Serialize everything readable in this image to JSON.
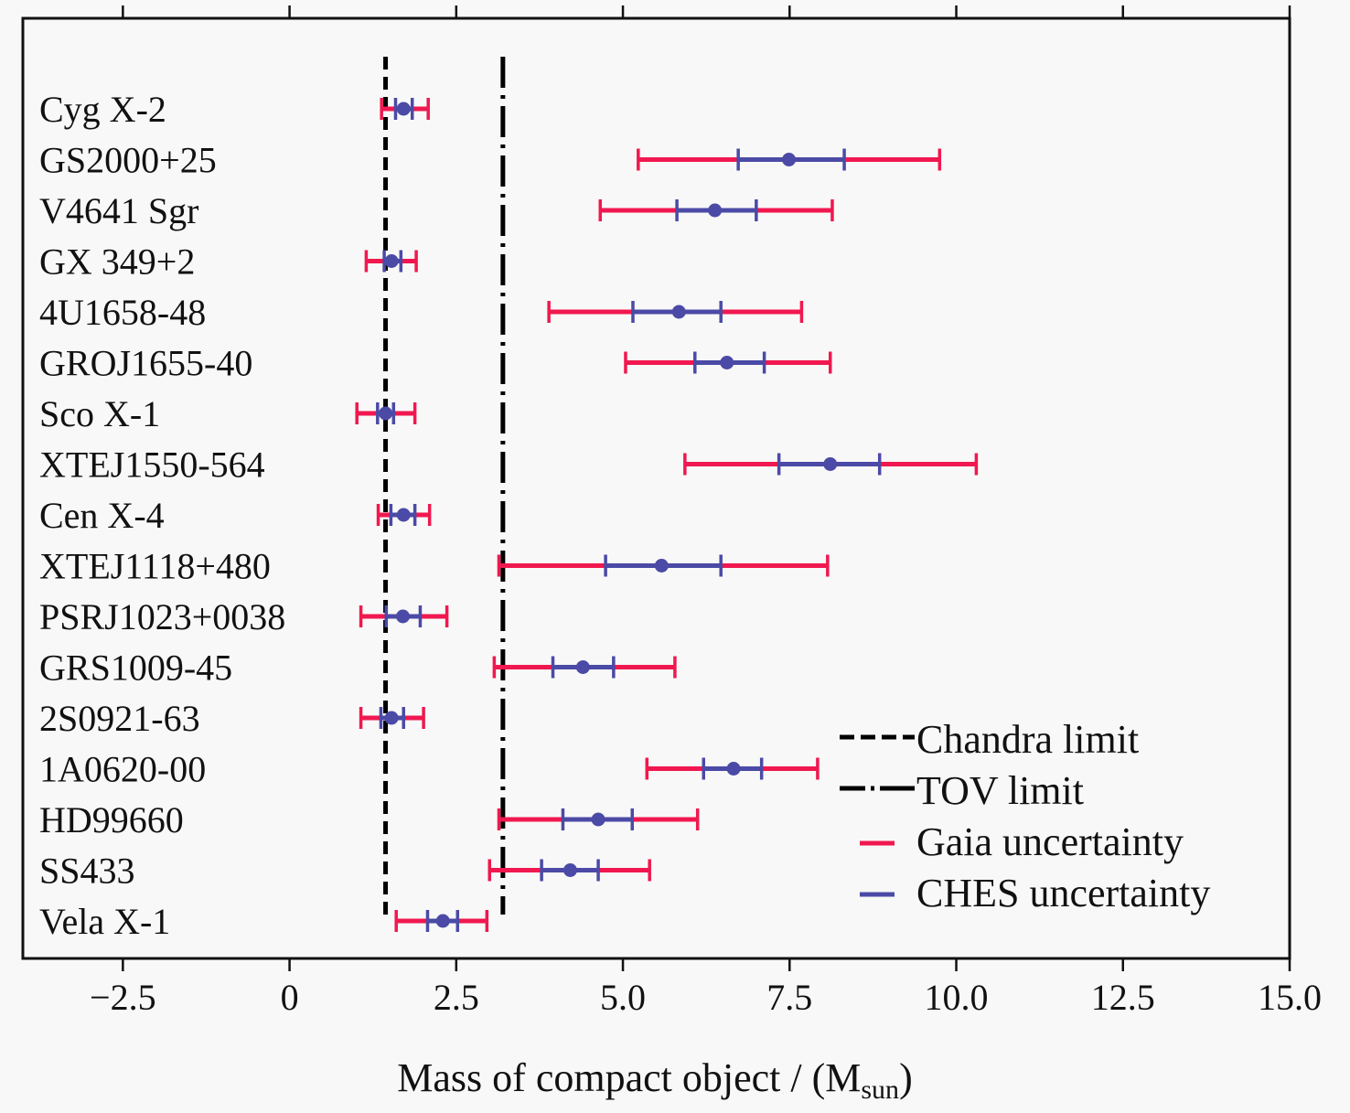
{
  "chart_data": {
    "type": "errorbar",
    "title": "",
    "xlabel": "Mass of compact object / (M",
    "xlabel_sub": "sun",
    "xlabel_close": ")",
    "ylabel": "",
    "xlim": [
      -4.0,
      15.0
    ],
    "xticks": [
      -2.5,
      0,
      2.5,
      5.0,
      7.5,
      10.0,
      12.5,
      15.0
    ],
    "xtick_labels": [
      "−2.5",
      "0",
      "2.5",
      "5.0",
      "7.5",
      "10.0",
      "12.5",
      "15.0"
    ],
    "grid": false,
    "legend_position": "bottom-right",
    "colors": {
      "gaia": "#f0184f",
      "ches": "#4b4aa6",
      "point": "#4b4aa6",
      "limit_lines": "#000000"
    },
    "reference_lines": [
      {
        "name": "Chandra limit",
        "x": 1.44,
        "style": "dashed"
      },
      {
        "name": "TOV limit",
        "x": 3.2,
        "style": "dashdot"
      }
    ],
    "legend": [
      {
        "label": "Chandra limit",
        "style": "dashed"
      },
      {
        "label": "TOV limit",
        "style": "dashdot"
      },
      {
        "label": "Gaia uncertainty",
        "style": "gaia"
      },
      {
        "label": "CHES uncertainty",
        "style": "ches"
      }
    ],
    "series": [
      {
        "name": "Cyg X-2",
        "mass": 1.71,
        "gaia": [
          1.38,
          2.08
        ],
        "ches": [
          1.59,
          1.84
        ]
      },
      {
        "name": "GS2000+25",
        "mass": 7.49,
        "gaia": [
          5.23,
          9.75
        ],
        "ches": [
          6.73,
          8.32
        ]
      },
      {
        "name": "V4641 Sgr",
        "mass": 6.38,
        "gaia": [
          4.66,
          8.14
        ],
        "ches": [
          5.81,
          7.0
        ]
      },
      {
        "name": "GX 349+2",
        "mass": 1.53,
        "gaia": [
          1.15,
          1.9
        ],
        "ches": [
          1.42,
          1.67
        ]
      },
      {
        "name": "4U1658-48",
        "mass": 5.84,
        "gaia": [
          3.89,
          7.68
        ],
        "ches": [
          5.15,
          6.47
        ]
      },
      {
        "name": "GROJ1655-40",
        "mass": 6.56,
        "gaia": [
          5.04,
          8.11
        ],
        "ches": [
          6.08,
          7.12
        ]
      },
      {
        "name": "Sco X-1",
        "mass": 1.44,
        "gaia": [
          1.01,
          1.88
        ],
        "ches": [
          1.32,
          1.56
        ]
      },
      {
        "name": "XTEJ1550-564",
        "mass": 8.11,
        "gaia": [
          5.93,
          10.3
        ],
        "ches": [
          7.34,
          8.85
        ]
      },
      {
        "name": "Cen X-4",
        "mass": 1.71,
        "gaia": [
          1.33,
          2.1
        ],
        "ches": [
          1.52,
          1.88
        ]
      },
      {
        "name": "XTEJ1118+480",
        "mass": 5.58,
        "gaia": [
          3.14,
          8.07
        ],
        "ches": [
          4.74,
          6.47
        ]
      },
      {
        "name": "PSRJ1023+0038",
        "mass": 1.7,
        "gaia": [
          1.07,
          2.36
        ],
        "ches": [
          1.45,
          1.96
        ]
      },
      {
        "name": "GRS1009-45",
        "mass": 4.4,
        "gaia": [
          3.07,
          5.78
        ],
        "ches": [
          3.95,
          4.86
        ]
      },
      {
        "name": "2S0921-63",
        "mass": 1.53,
        "gaia": [
          1.07,
          2.01
        ],
        "ches": [
          1.37,
          1.71
        ]
      },
      {
        "name": "1A0620-00",
        "mass": 6.66,
        "gaia": [
          5.36,
          7.92
        ],
        "ches": [
          6.21,
          7.08
        ]
      },
      {
        "name": "HD99660",
        "mass": 4.63,
        "gaia": [
          3.14,
          6.12
        ],
        "ches": [
          4.1,
          5.14
        ]
      },
      {
        "name": "SS433",
        "mass": 4.21,
        "gaia": [
          3.0,
          5.4
        ],
        "ches": [
          3.78,
          4.63
        ]
      },
      {
        "name": "Vela X-1",
        "mass": 2.3,
        "gaia": [
          1.6,
          2.96
        ],
        "ches": [
          2.07,
          2.52
        ]
      }
    ]
  }
}
